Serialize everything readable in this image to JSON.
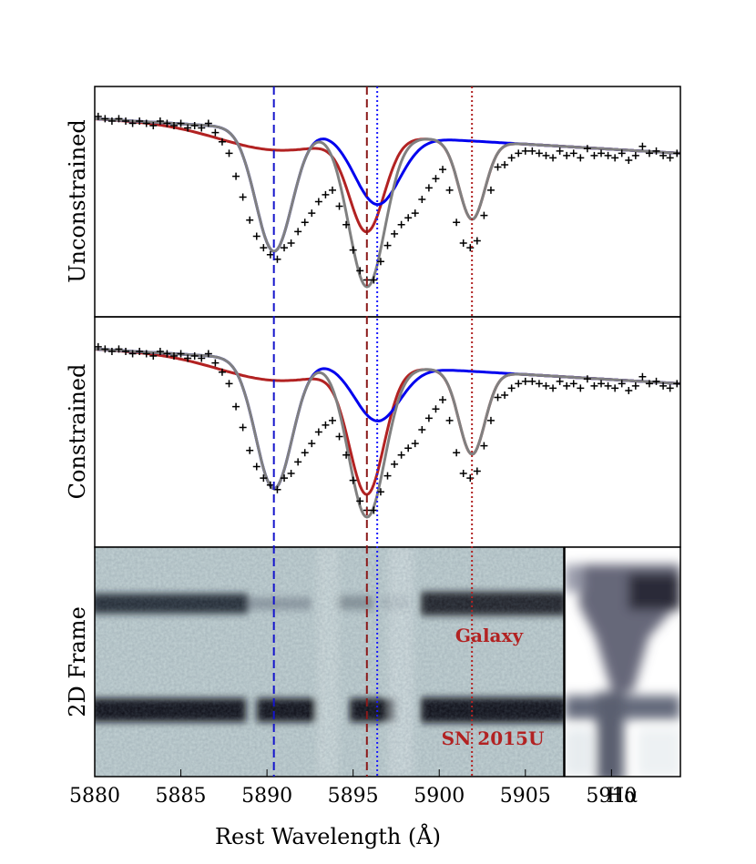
{
  "chart_data": {
    "type": "line",
    "xlabel": "Rest Wavelength (Å)",
    "xlim": [
      5880,
      5914
    ],
    "x_ticks": [
      5880,
      5885,
      5890,
      5895,
      5900,
      5905,
      5910
    ],
    "x_tick_labels": [
      "5880",
      "5885",
      "5890",
      "5895",
      "5900",
      "5905",
      "5910"
    ],
    "extra_tick_label": "Hα",
    "reference_lines": [
      {
        "x": 5890.4,
        "color": "#1515cc",
        "style": "dashed"
      },
      {
        "x": 5895.8,
        "color": "#8b1a1a",
        "style": "dashed"
      },
      {
        "x": 5896.4,
        "color": "#1a1aff",
        "style": "dotted"
      },
      {
        "x": 5901.9,
        "color": "#b22222",
        "style": "dotted"
      }
    ],
    "panels": [
      {
        "ylabel": "Unconstrained",
        "ylim": [
          0.0,
          1.0
        ],
        "series": [
          {
            "name": "total fit",
            "color": "#808080",
            "components": {
              "continuum": 0.86,
              "slope": -0.006,
              "lines": [
                {
                  "mu": 5890.4,
                  "sigma": 1.05,
                  "depth": 0.53
                },
                {
                  "mu": 5895.8,
                  "sigma": 1.05,
                  "depth": 0.66
                },
                {
                  "mu": 5901.9,
                  "sigma": 0.75,
                  "depth": 0.34
                }
              ]
            }
          },
          {
            "name": "blue component",
            "color": "#0000ee",
            "components": {
              "continuum": 0.86,
              "slope": -0.006,
              "lines": [
                {
                  "mu": 5890.4,
                  "sigma": 1.05,
                  "depth": 0.53
                },
                {
                  "mu": 5896.4,
                  "sigma": 1.3,
                  "depth": 0.3
                }
              ]
            }
          },
          {
            "name": "red component",
            "color": "#b22222",
            "components": {
              "continuum": 0.86,
              "slope": -0.006,
              "lines": [
                {
                  "mu": 5890.4,
                  "sigma": 3.2,
                  "depth": 0.09
                },
                {
                  "mu": 5895.8,
                  "sigma": 1.0,
                  "depth": 0.4
                },
                {
                  "mu": 5901.9,
                  "sigma": 0.75,
                  "depth": 0.34
                }
              ]
            }
          }
        ],
        "data_points": [
          [
            5880.2,
            0.87
          ],
          [
            5880.6,
            0.86
          ],
          [
            5881.0,
            0.85
          ],
          [
            5881.4,
            0.86
          ],
          [
            5881.8,
            0.85
          ],
          [
            5882.2,
            0.84
          ],
          [
            5882.6,
            0.85
          ],
          [
            5883.0,
            0.84
          ],
          [
            5883.4,
            0.83
          ],
          [
            5883.8,
            0.85
          ],
          [
            5884.2,
            0.84
          ],
          [
            5884.6,
            0.83
          ],
          [
            5885.0,
            0.84
          ],
          [
            5885.4,
            0.82
          ],
          [
            5885.8,
            0.83
          ],
          [
            5886.2,
            0.82
          ],
          [
            5886.6,
            0.84
          ],
          [
            5887.0,
            0.8
          ],
          [
            5887.4,
            0.76
          ],
          [
            5887.8,
            0.71
          ],
          [
            5888.2,
            0.61
          ],
          [
            5888.6,
            0.52
          ],
          [
            5889.0,
            0.42
          ],
          [
            5889.4,
            0.35
          ],
          [
            5889.8,
            0.3
          ],
          [
            5890.2,
            0.27
          ],
          [
            5890.6,
            0.25
          ],
          [
            5891.0,
            0.3
          ],
          [
            5891.4,
            0.32
          ],
          [
            5891.8,
            0.37
          ],
          [
            5892.2,
            0.41
          ],
          [
            5892.6,
            0.45
          ],
          [
            5893.0,
            0.5
          ],
          [
            5893.4,
            0.53
          ],
          [
            5893.8,
            0.55
          ],
          [
            5894.2,
            0.48
          ],
          [
            5894.6,
            0.4
          ],
          [
            5895.0,
            0.29
          ],
          [
            5895.4,
            0.2
          ],
          [
            5895.8,
            0.16
          ],
          [
            5896.2,
            0.16
          ],
          [
            5896.6,
            0.24
          ],
          [
            5897.0,
            0.31
          ],
          [
            5897.4,
            0.36
          ],
          [
            5897.8,
            0.4
          ],
          [
            5898.2,
            0.43
          ],
          [
            5898.6,
            0.45
          ],
          [
            5899.0,
            0.51
          ],
          [
            5899.4,
            0.56
          ],
          [
            5899.8,
            0.6
          ],
          [
            5900.2,
            0.64
          ],
          [
            5900.6,
            0.55
          ],
          [
            5901.0,
            0.41
          ],
          [
            5901.4,
            0.32
          ],
          [
            5901.8,
            0.3
          ],
          [
            5902.2,
            0.33
          ],
          [
            5902.6,
            0.44
          ],
          [
            5903.0,
            0.55
          ],
          [
            5903.4,
            0.65
          ],
          [
            5903.8,
            0.66
          ],
          [
            5904.2,
            0.69
          ],
          [
            5904.6,
            0.71
          ],
          [
            5905.0,
            0.72
          ],
          [
            5905.4,
            0.72
          ],
          [
            5905.8,
            0.71
          ],
          [
            5906.2,
            0.7
          ],
          [
            5906.6,
            0.69
          ],
          [
            5907.0,
            0.72
          ],
          [
            5907.4,
            0.7
          ],
          [
            5907.8,
            0.71
          ],
          [
            5908.2,
            0.69
          ],
          [
            5908.6,
            0.73
          ],
          [
            5909.0,
            0.7
          ],
          [
            5909.4,
            0.71
          ],
          [
            5909.8,
            0.7
          ],
          [
            5910.2,
            0.69
          ],
          [
            5910.6,
            0.71
          ],
          [
            5911.0,
            0.68
          ],
          [
            5911.4,
            0.7
          ],
          [
            5911.8,
            0.74
          ],
          [
            5912.2,
            0.71
          ],
          [
            5912.6,
            0.72
          ],
          [
            5913.0,
            0.7
          ],
          [
            5913.4,
            0.69
          ],
          [
            5913.8,
            0.71
          ]
        ]
      },
      {
        "ylabel": "Constrained",
        "ylim": [
          0.0,
          1.0
        ],
        "series": [
          {
            "name": "total fit",
            "color": "#808080",
            "components": {
              "continuum": 0.86,
              "slope": -0.006,
              "lines": [
                {
                  "mu": 5890.4,
                  "sigma": 1.05,
                  "depth": 0.56
                },
                {
                  "mu": 5895.8,
                  "sigma": 1.05,
                  "depth": 0.66
                },
                {
                  "mu": 5901.9,
                  "sigma": 0.75,
                  "depth": 0.36
                }
              ]
            }
          },
          {
            "name": "blue component",
            "color": "#0000ee",
            "components": {
              "continuum": 0.86,
              "slope": -0.006,
              "lines": [
                {
                  "mu": 5890.4,
                  "sigma": 1.05,
                  "depth": 0.56
                },
                {
                  "mu": 5896.4,
                  "sigma": 1.3,
                  "depth": 0.24
                }
              ]
            }
          },
          {
            "name": "red component",
            "color": "#b22222",
            "components": {
              "continuum": 0.86,
              "slope": -0.006,
              "lines": [
                {
                  "mu": 5890.4,
                  "sigma": 3.2,
                  "depth": 0.09
                },
                {
                  "mu": 5895.8,
                  "sigma": 1.0,
                  "depth": 0.54
                },
                {
                  "mu": 5901.9,
                  "sigma": 0.75,
                  "depth": 0.36
                }
              ]
            }
          }
        ],
        "data_points": [
          [
            5880.2,
            0.87
          ],
          [
            5880.6,
            0.86
          ],
          [
            5881.0,
            0.85
          ],
          [
            5881.4,
            0.86
          ],
          [
            5881.8,
            0.85
          ],
          [
            5882.2,
            0.84
          ],
          [
            5882.6,
            0.85
          ],
          [
            5883.0,
            0.84
          ],
          [
            5883.4,
            0.83
          ],
          [
            5883.8,
            0.85
          ],
          [
            5884.2,
            0.84
          ],
          [
            5884.6,
            0.83
          ],
          [
            5885.0,
            0.84
          ],
          [
            5885.4,
            0.82
          ],
          [
            5885.8,
            0.83
          ],
          [
            5886.2,
            0.82
          ],
          [
            5886.6,
            0.84
          ],
          [
            5887.0,
            0.8
          ],
          [
            5887.4,
            0.76
          ],
          [
            5887.8,
            0.71
          ],
          [
            5888.2,
            0.61
          ],
          [
            5888.6,
            0.52
          ],
          [
            5889.0,
            0.42
          ],
          [
            5889.4,
            0.35
          ],
          [
            5889.8,
            0.3
          ],
          [
            5890.2,
            0.27
          ],
          [
            5890.6,
            0.25
          ],
          [
            5891.0,
            0.3
          ],
          [
            5891.4,
            0.32
          ],
          [
            5891.8,
            0.37
          ],
          [
            5892.2,
            0.41
          ],
          [
            5892.6,
            0.45
          ],
          [
            5893.0,
            0.5
          ],
          [
            5893.4,
            0.53
          ],
          [
            5893.8,
            0.55
          ],
          [
            5894.2,
            0.48
          ],
          [
            5894.6,
            0.4
          ],
          [
            5895.0,
            0.29
          ],
          [
            5895.4,
            0.2
          ],
          [
            5895.8,
            0.16
          ],
          [
            5896.2,
            0.16
          ],
          [
            5896.6,
            0.24
          ],
          [
            5897.0,
            0.31
          ],
          [
            5897.4,
            0.36
          ],
          [
            5897.8,
            0.4
          ],
          [
            5898.2,
            0.43
          ],
          [
            5898.6,
            0.45
          ],
          [
            5899.0,
            0.51
          ],
          [
            5899.4,
            0.56
          ],
          [
            5899.8,
            0.6
          ],
          [
            5900.2,
            0.64
          ],
          [
            5900.6,
            0.55
          ],
          [
            5901.0,
            0.41
          ],
          [
            5901.4,
            0.32
          ],
          [
            5901.8,
            0.3
          ],
          [
            5902.2,
            0.33
          ],
          [
            5902.6,
            0.44
          ],
          [
            5903.0,
            0.55
          ],
          [
            5903.4,
            0.65
          ],
          [
            5903.8,
            0.66
          ],
          [
            5904.2,
            0.69
          ],
          [
            5904.6,
            0.71
          ],
          [
            5905.0,
            0.72
          ],
          [
            5905.4,
            0.72
          ],
          [
            5905.8,
            0.71
          ],
          [
            5906.2,
            0.7
          ],
          [
            5906.6,
            0.69
          ],
          [
            5907.0,
            0.72
          ],
          [
            5907.4,
            0.7
          ],
          [
            5907.8,
            0.71
          ],
          [
            5908.2,
            0.69
          ],
          [
            5908.6,
            0.73
          ],
          [
            5909.0,
            0.7
          ],
          [
            5909.4,
            0.71
          ],
          [
            5909.8,
            0.7
          ],
          [
            5910.2,
            0.69
          ],
          [
            5910.6,
            0.71
          ],
          [
            5911.0,
            0.68
          ],
          [
            5911.4,
            0.7
          ],
          [
            5911.8,
            0.74
          ],
          [
            5912.2,
            0.71
          ],
          [
            5912.6,
            0.72
          ],
          [
            5913.0,
            0.7
          ],
          [
            5913.4,
            0.69
          ],
          [
            5913.8,
            0.71
          ]
        ]
      },
      {
        "ylabel": "2D Frame",
        "type": "image",
        "annotations": [
          {
            "text": "Galaxy",
            "color": "#b22222"
          },
          {
            "text": "SN 2015U",
            "color": "#b22222"
          }
        ]
      }
    ]
  }
}
